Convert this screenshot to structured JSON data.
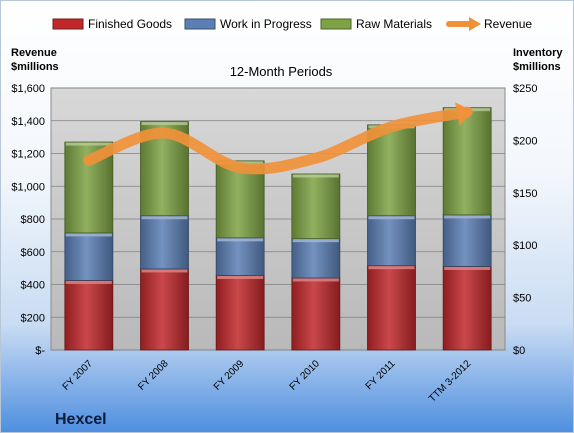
{
  "chart_data": {
    "type": "bar",
    "stacked": true,
    "title": "12-Month Periods",
    "company": "Hexcel",
    "categories": [
      "FY 2007",
      "FY 2008",
      "FY 2009",
      "FY 2010",
      "FY 2011",
      "TTM 3-2012"
    ],
    "series": [
      {
        "name": "Finished Goods",
        "axis": "left",
        "color": "#c0282b",
        "values": [
          425,
          495,
          455,
          440,
          515,
          510
        ]
      },
      {
        "name": "Work in Progress",
        "axis": "left",
        "color": "#5b7fb5",
        "values": [
          290,
          325,
          230,
          240,
          305,
          315
        ]
      },
      {
        "name": "Raw Materials",
        "axis": "left",
        "color": "#7ea344",
        "values": [
          555,
          575,
          470,
          395,
          555,
          655
        ]
      }
    ],
    "line_series": {
      "name": "Revenue",
      "axis": "right",
      "color": "#f0913a",
      "values": [
        181,
        207,
        174,
        183,
        213,
        227
      ]
    },
    "left_axis": {
      "label_line1": "Revenue",
      "label_line2": "$millions",
      "ylim": [
        0,
        1600
      ],
      "ticks": [
        {
          "value": 0,
          "label": "$-"
        },
        {
          "value": 200,
          "label": "$200"
        },
        {
          "value": 400,
          "label": "$400"
        },
        {
          "value": 600,
          "label": "$600"
        },
        {
          "value": 800,
          "label": "$800"
        },
        {
          "value": 1000,
          "label": "$1,000"
        },
        {
          "value": 1200,
          "label": "$1,200"
        },
        {
          "value": 1400,
          "label": "$1,400"
        },
        {
          "value": 1600,
          "label": "$1,600"
        }
      ]
    },
    "right_axis": {
      "label_line1": "Inventory",
      "label_line2": "$millions",
      "ylim": [
        0,
        250
      ],
      "ticks": [
        {
          "value": 0,
          "label": "$0"
        },
        {
          "value": 50,
          "label": "$50"
        },
        {
          "value": 100,
          "label": "$100"
        },
        {
          "value": 150,
          "label": "$150"
        },
        {
          "value": 200,
          "label": "$200"
        },
        {
          "value": 250,
          "label": "$250"
        }
      ]
    },
    "grid": true,
    "legend_position": "top"
  }
}
